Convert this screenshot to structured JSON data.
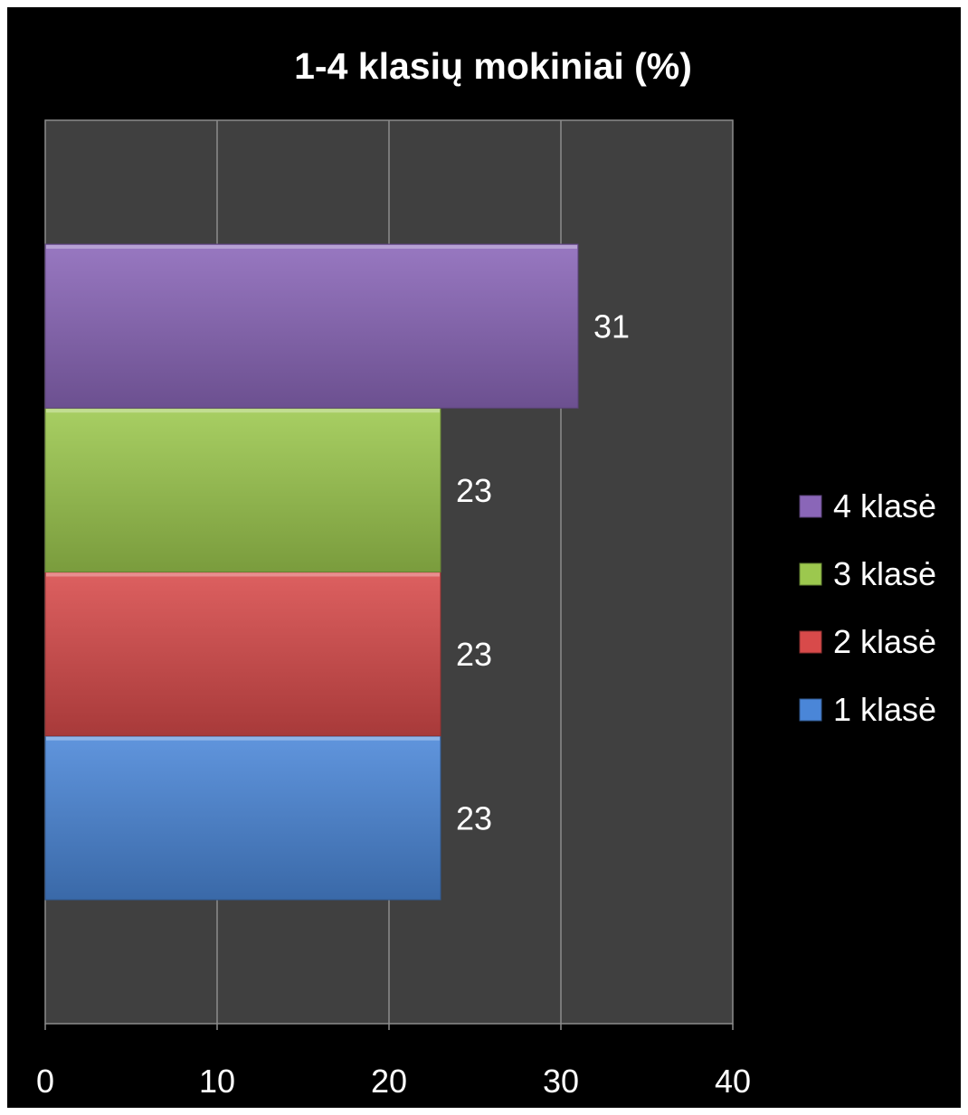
{
  "chart_data": {
    "type": "bar",
    "orientation": "horizontal",
    "title": "1-4 klasių mokiniai (%)",
    "xlabel": "",
    "ylabel": "",
    "xlim": [
      0,
      40
    ],
    "x_ticks": [
      0,
      10,
      20,
      30,
      40
    ],
    "grid": true,
    "legend_position": "right",
    "series": [
      {
        "name": "1 klasė",
        "value": 23,
        "color": "#4a86d8"
      },
      {
        "name": "2 klasė",
        "value": 23,
        "color": "#d84a4a"
      },
      {
        "name": "3 klasė",
        "value": 23,
        "color": "#9cc84e"
      },
      {
        "name": "4 klasė",
        "value": 31,
        "color": "#8a66b8"
      }
    ],
    "plot_background": "#404040",
    "background": "#000000",
    "text_color": "#ffffff"
  }
}
